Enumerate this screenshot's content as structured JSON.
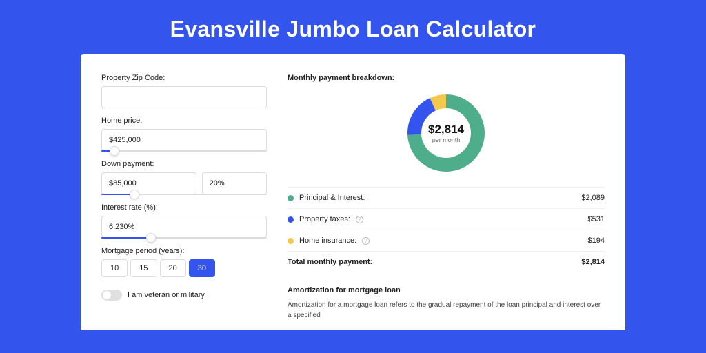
{
  "page": {
    "title": "Evansville Jumbo Loan Calculator",
    "background_color": "#3355ee",
    "card_background": "#ffffff"
  },
  "form": {
    "zip": {
      "label": "Property Zip Code:",
      "value": ""
    },
    "home_price": {
      "label": "Home price:",
      "value": "$425,000",
      "slider_pct": 8
    },
    "down_payment": {
      "label": "Down payment:",
      "amount": "$85,000",
      "percent": "20%",
      "slider_pct": 20
    },
    "interest_rate": {
      "label": "Interest rate (%):",
      "value": "6.230%",
      "slider_pct": 30
    },
    "mortgage_period": {
      "label": "Mortgage period (years):",
      "options": [
        "10",
        "15",
        "20",
        "30"
      ],
      "active": "30"
    },
    "veteran": {
      "label": "I am veteran or military",
      "checked": false
    }
  },
  "breakdown": {
    "title": "Monthly payment breakdown:",
    "donut": {
      "amount": "$2,814",
      "sub": "per month",
      "segments": [
        {
          "label": "Principal & Interest:",
          "value": "$2,089",
          "color": "#4eae8c",
          "pct": 74.2
        },
        {
          "label": "Property taxes:",
          "value": "$531",
          "color": "#3355ee",
          "pct": 18.9,
          "info": true
        },
        {
          "label": "Home insurance:",
          "value": "$194",
          "color": "#f2c94c",
          "pct": 6.9,
          "info": true
        }
      ]
    },
    "total": {
      "label": "Total monthly payment:",
      "value": "$2,814"
    }
  },
  "amortization": {
    "title": "Amortization for mortgage loan",
    "text": "Amortization for a mortgage loan refers to the gradual repayment of the loan principal and interest over a specified"
  },
  "styles": {
    "accent": "#3355ee",
    "border": "#dcdcdc",
    "text": "#222222",
    "muted": "#666666"
  }
}
